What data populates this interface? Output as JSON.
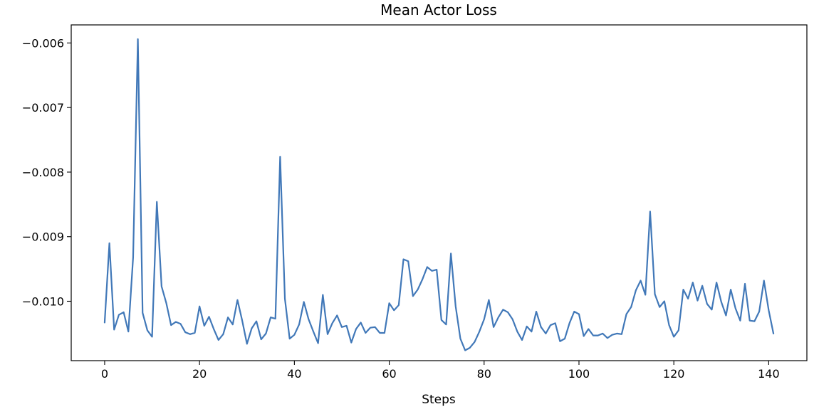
{
  "chart_data": {
    "type": "line",
    "title": "Mean Actor Loss",
    "xlabel": "Steps",
    "ylabel": "",
    "xlim": [
      -7.05,
      148.05
    ],
    "ylim": [
      -0.01092,
      -0.00572
    ],
    "xticks": [
      0,
      20,
      40,
      60,
      80,
      100,
      120,
      140
    ],
    "xtick_labels": [
      "0",
      "20",
      "40",
      "60",
      "80",
      "100",
      "120",
      "140"
    ],
    "yticks": [
      -0.006,
      -0.007,
      -0.008,
      -0.009,
      -0.01
    ],
    "ytick_labels": [
      "−0.006",
      "−0.007",
      "−0.008",
      "−0.009",
      "−0.010"
    ],
    "grid": false,
    "series": [
      {
        "color": "#4178b8",
        "x": [
          0,
          1,
          2,
          3,
          4,
          5,
          6,
          7,
          8,
          9,
          10,
          11,
          12,
          13,
          14,
          15,
          16,
          17,
          18,
          19,
          20,
          21,
          22,
          23,
          24,
          25,
          26,
          27,
          28,
          29,
          30,
          31,
          32,
          33,
          34,
          35,
          36,
          37,
          38,
          39,
          40,
          41,
          42,
          43,
          44,
          45,
          46,
          47,
          48,
          49,
          50,
          51,
          52,
          53,
          54,
          55,
          56,
          57,
          58,
          59,
          60,
          61,
          62,
          63,
          64,
          65,
          66,
          67,
          68,
          69,
          70,
          71,
          72,
          73,
          74,
          75,
          76,
          77,
          78,
          79,
          80,
          81,
          82,
          83,
          84,
          85,
          86,
          87,
          88,
          89,
          90,
          91,
          92,
          93,
          94,
          95,
          96,
          97,
          98,
          99,
          100,
          101,
          102,
          103,
          104,
          105,
          106,
          107,
          108,
          109,
          110,
          111,
          112,
          113,
          114,
          115,
          116,
          117,
          118,
          119,
          120,
          121,
          122,
          123,
          124,
          125,
          126,
          127,
          128,
          129,
          130,
          131,
          132,
          133,
          134,
          135,
          136,
          137,
          138,
          139,
          140,
          141
        ],
        "y": [
          -0.01033,
          -0.0091,
          -0.01044,
          -0.01021,
          -0.01017,
          -0.01047,
          -0.00932,
          -0.00594,
          -0.01018,
          -0.01045,
          -0.01055,
          -0.00846,
          -0.00977,
          -0.01003,
          -0.01037,
          -0.01032,
          -0.01035,
          -0.01048,
          -0.01051,
          -0.01049,
          -0.01008,
          -0.01038,
          -0.01024,
          -0.01043,
          -0.0106,
          -0.01051,
          -0.01025,
          -0.01036,
          -0.00998,
          -0.0103,
          -0.01066,
          -0.01042,
          -0.01031,
          -0.01059,
          -0.0105,
          -0.01025,
          -0.01027,
          -0.00776,
          -0.00996,
          -0.01058,
          -0.01052,
          -0.01036,
          -0.01001,
          -0.01028,
          -0.01047,
          -0.01065,
          -0.0099,
          -0.01051,
          -0.01034,
          -0.01022,
          -0.0104,
          -0.01038,
          -0.01064,
          -0.01043,
          -0.01033,
          -0.01049,
          -0.01041,
          -0.0104,
          -0.01049,
          -0.01049,
          -0.01003,
          -0.01014,
          -0.01006,
          -0.00935,
          -0.00938,
          -0.00992,
          -0.00982,
          -0.00966,
          -0.00947,
          -0.00953,
          -0.00951,
          -0.01029,
          -0.01036,
          -0.00926,
          -0.01008,
          -0.01058,
          -0.01076,
          -0.01072,
          -0.01063,
          -0.01047,
          -0.01028,
          -0.00998,
          -0.0104,
          -0.01025,
          -0.01013,
          -0.01017,
          -0.01028,
          -0.01047,
          -0.0106,
          -0.01039,
          -0.01047,
          -0.01016,
          -0.0104,
          -0.0105,
          -0.01037,
          -0.01034,
          -0.01062,
          -0.01058,
          -0.01034,
          -0.01016,
          -0.0102,
          -0.01054,
          -0.01043,
          -0.01053,
          -0.01053,
          -0.0105,
          -0.01057,
          -0.01052,
          -0.0105,
          -0.01051,
          -0.0102,
          -0.01009,
          -0.00983,
          -0.00968,
          -0.0099,
          -0.00861,
          -0.00989,
          -0.01009,
          -0.01,
          -0.01037,
          -0.01055,
          -0.01045,
          -0.00982,
          -0.00996,
          -0.00971,
          -0.00999,
          -0.00976,
          -0.01004,
          -0.01013,
          -0.00971,
          -0.01001,
          -0.01022,
          -0.00982,
          -0.01011,
          -0.0103,
          -0.00973,
          -0.0103,
          -0.01031,
          -0.01016,
          -0.00968,
          -0.01014,
          -0.0105
        ]
      }
    ]
  }
}
